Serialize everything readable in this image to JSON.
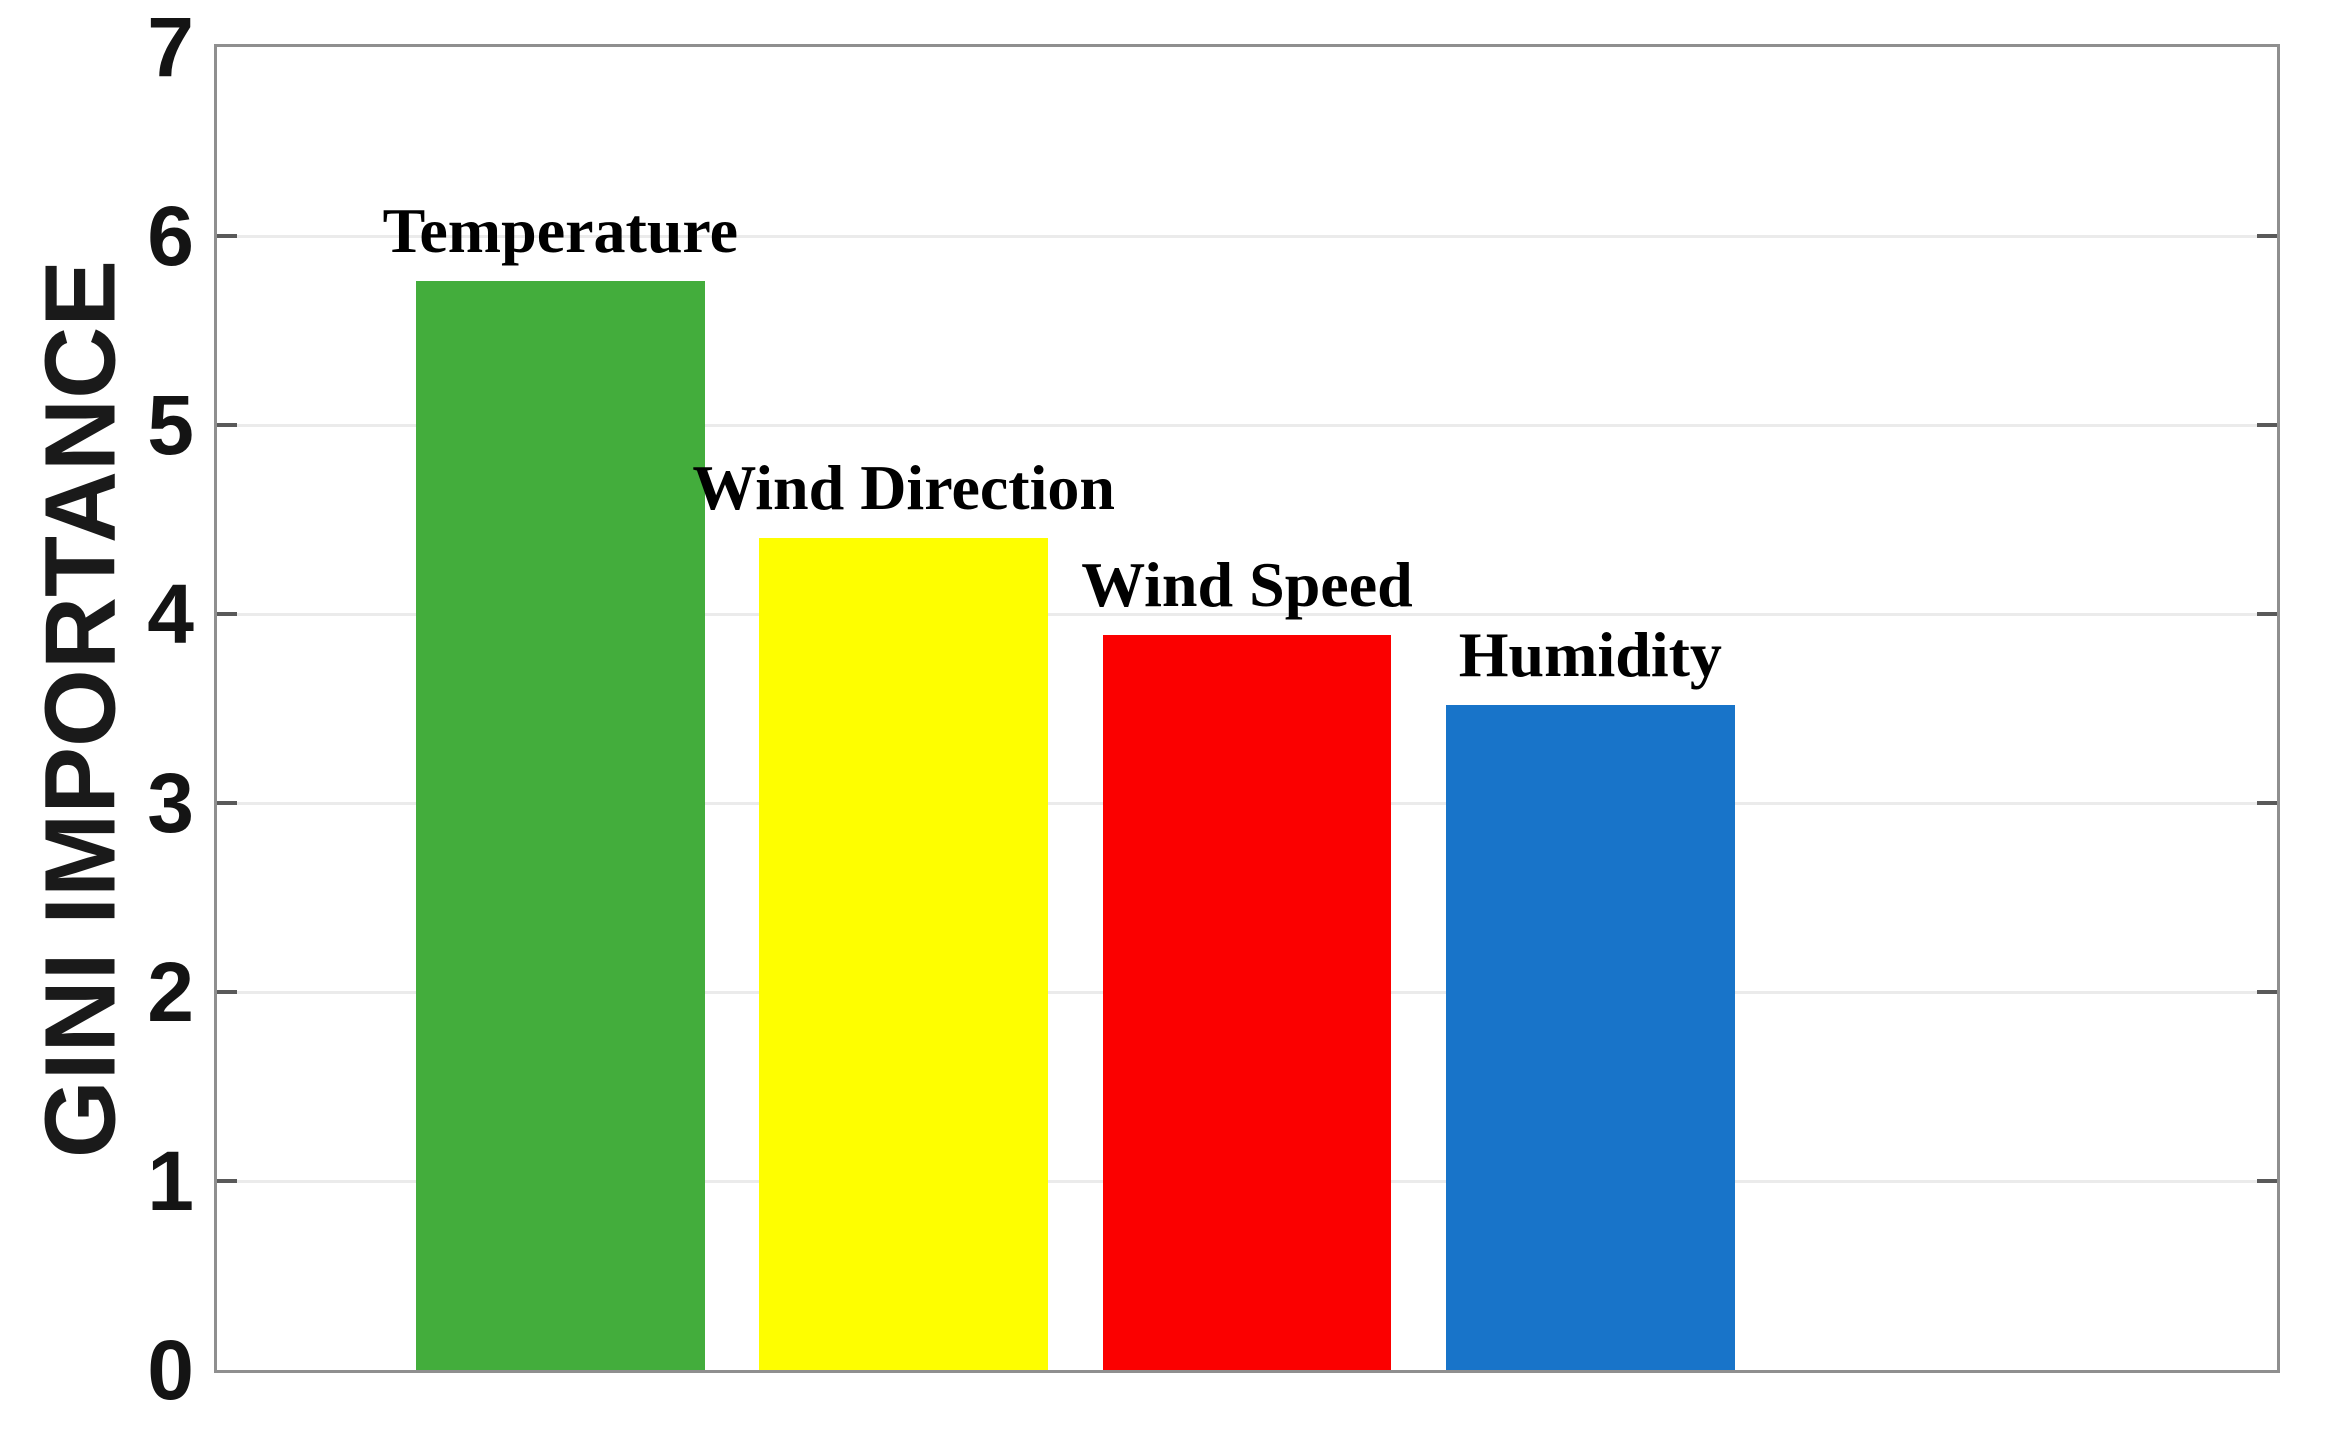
{
  "chart_data": {
    "type": "bar",
    "categories": [
      "Temperature",
      "Wind Direction",
      "Wind Speed",
      "Humidity"
    ],
    "values": [
      5.76,
      4.4,
      3.89,
      3.52
    ],
    "bar_colors": [
      "#43AD3C",
      "#FEFE00",
      "#FB0000",
      "#1874C9"
    ],
    "title": "",
    "xlabel": "",
    "ylabel": "GINI IMPORTANCE",
    "ylim": [
      0,
      7
    ],
    "yticks": [
      0,
      1,
      2,
      3,
      4,
      5,
      6,
      7
    ],
    "xlim": [
      0,
      6
    ],
    "bar_positions": [
      1,
      2,
      3,
      4
    ],
    "bar_width": 0.84,
    "grid": "horizontal",
    "bar_value_labels": "category names above bars",
    "legend": "none",
    "axis_style": {
      "box_color": "#8f8f8f",
      "grid_color": "#ebebeb",
      "tick_color": "#595959",
      "text_color": "#141414"
    }
  }
}
